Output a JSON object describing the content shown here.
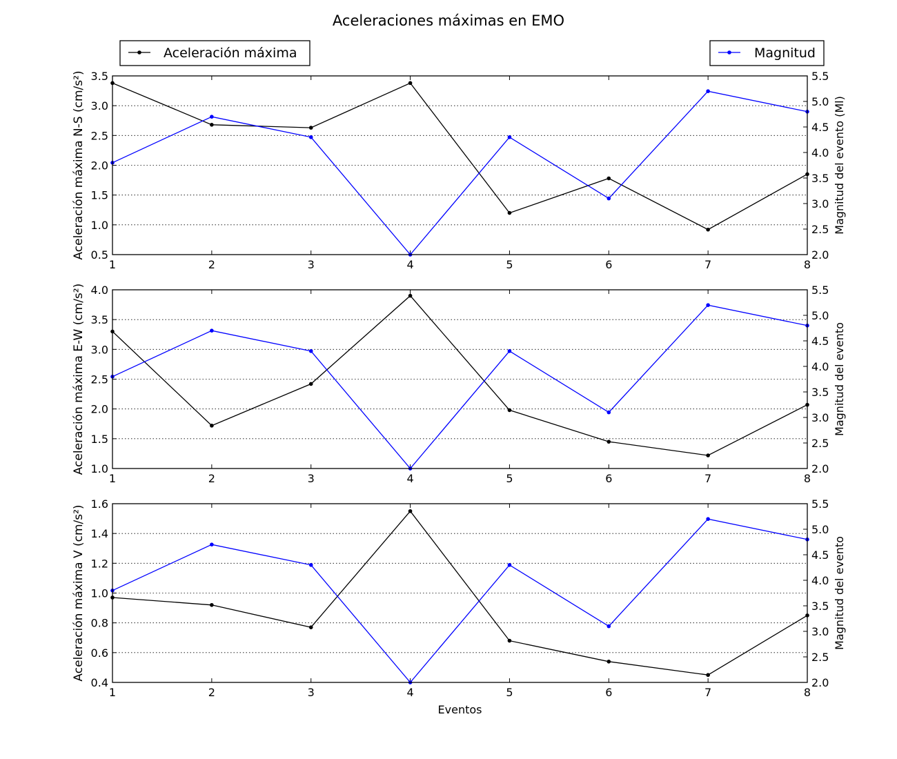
{
  "figure": {
    "title": "Aceleraciones máximas en EMO"
  },
  "legend": {
    "left": {
      "label": "Aceleración máxima",
      "color": "#000000"
    },
    "right": {
      "label": "Magnitud",
      "color": "#0000ff"
    }
  },
  "chart_data": [
    {
      "type": "line",
      "xlabel": "",
      "ylabel": "Aceleración máxima N-S (cm/s²)",
      "y2label": "Magnitud del evento (Ml)",
      "x": [
        1,
        2,
        3,
        4,
        5,
        6,
        7,
        8
      ],
      "xlim": [
        1,
        8
      ],
      "xticks": [
        "1",
        "2",
        "3",
        "4",
        "5",
        "6",
        "7",
        "8"
      ],
      "ylim": [
        0.5,
        3.5
      ],
      "yticks": [
        "0.5",
        "1.0",
        "1.5",
        "2.0",
        "2.5",
        "3.0",
        "3.5"
      ],
      "y2lim": [
        2.0,
        5.5
      ],
      "y2ticks": [
        "2.0",
        "2.5",
        "3.0",
        "3.5",
        "4.0",
        "4.5",
        "5.0",
        "5.5"
      ],
      "grid": true,
      "series": [
        {
          "name": "Aceleración máxima",
          "axis": "left",
          "color": "#000000",
          "values": [
            3.38,
            2.68,
            2.63,
            3.38,
            1.2,
            1.78,
            0.92,
            1.85
          ]
        },
        {
          "name": "Magnitud",
          "axis": "right",
          "color": "#0000ff",
          "values": [
            3.8,
            4.7,
            4.3,
            2.0,
            4.3,
            3.1,
            5.2,
            4.8
          ]
        }
      ]
    },
    {
      "type": "line",
      "xlabel": "",
      "ylabel": "Aceleración máxima E-W (cm/s²)",
      "y2label": "Magnitud del evento",
      "x": [
        1,
        2,
        3,
        4,
        5,
        6,
        7,
        8
      ],
      "xlim": [
        1,
        8
      ],
      "xticks": [
        "1",
        "2",
        "3",
        "4",
        "5",
        "6",
        "7",
        "8"
      ],
      "ylim": [
        1.0,
        4.0
      ],
      "yticks": [
        "1.0",
        "1.5",
        "2.0",
        "2.5",
        "3.0",
        "3.5",
        "4.0"
      ],
      "y2lim": [
        2.0,
        5.5
      ],
      "y2ticks": [
        "2.0",
        "2.5",
        "3.0",
        "3.5",
        "4.0",
        "4.5",
        "5.0",
        "5.5"
      ],
      "grid": true,
      "series": [
        {
          "name": "Aceleración máxima",
          "axis": "left",
          "color": "#000000",
          "values": [
            3.3,
            1.72,
            2.42,
            3.9,
            1.98,
            1.45,
            1.22,
            2.07
          ]
        },
        {
          "name": "Magnitud",
          "axis": "right",
          "color": "#0000ff",
          "values": [
            3.8,
            4.7,
            4.3,
            2.0,
            4.3,
            3.1,
            5.2,
            4.8
          ]
        }
      ]
    },
    {
      "type": "line",
      "xlabel": "Eventos",
      "ylabel": "Aceleración máxima V (cm/s²)",
      "y2label": "Magnitud del evento",
      "x": [
        1,
        2,
        3,
        4,
        5,
        6,
        7,
        8
      ],
      "xlim": [
        1,
        8
      ],
      "xticks": [
        "1",
        "2",
        "3",
        "4",
        "5",
        "6",
        "7",
        "8"
      ],
      "ylim": [
        0.4,
        1.6
      ],
      "yticks": [
        "0.4",
        "0.6",
        "0.8",
        "1.0",
        "1.2",
        "1.4",
        "1.6"
      ],
      "y2lim": [
        2.0,
        5.5
      ],
      "y2ticks": [
        "2.0",
        "2.5",
        "3.0",
        "3.5",
        "4.0",
        "4.5",
        "5.0",
        "5.5"
      ],
      "grid": true,
      "series": [
        {
          "name": "Aceleración máxima",
          "axis": "left",
          "color": "#000000",
          "values": [
            0.97,
            0.92,
            0.77,
            1.55,
            0.68,
            0.54,
            0.45,
            0.85
          ]
        },
        {
          "name": "Magnitud",
          "axis": "right",
          "color": "#0000ff",
          "values": [
            3.8,
            4.7,
            4.3,
            2.0,
            4.3,
            3.1,
            5.2,
            4.8
          ]
        }
      ]
    }
  ]
}
